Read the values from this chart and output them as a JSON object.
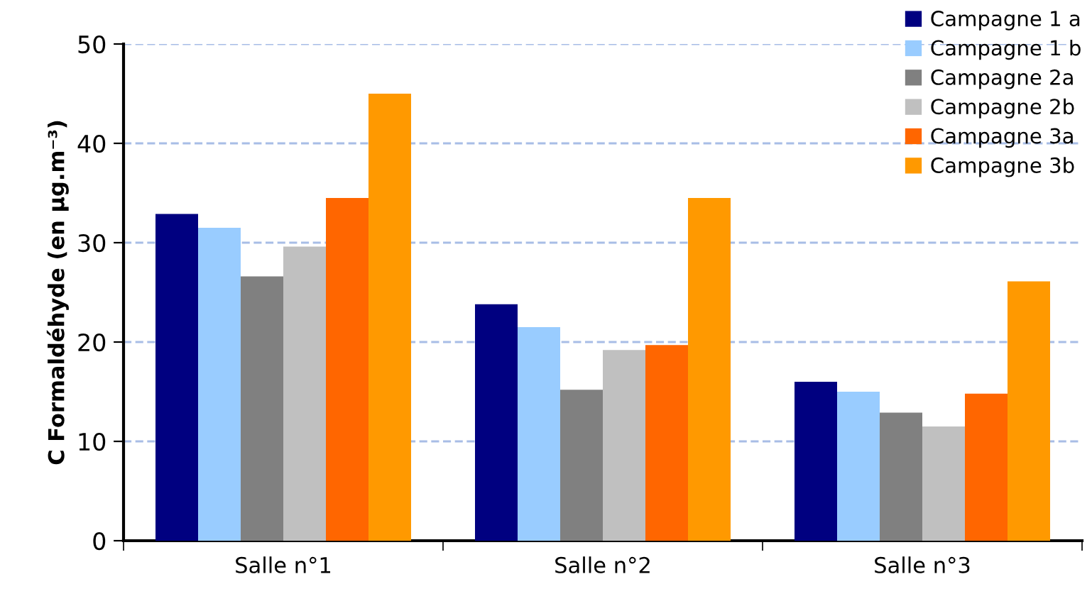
{
  "chart_data": {
    "type": "bar",
    "ylabel": "C Formaldéhyde (en µg.m⁻³)",
    "categories": [
      "Salle n°1",
      "Salle n°2",
      "Salle n°3"
    ],
    "series": [
      {
        "name": "Campagne 1 a",
        "color": "#000080",
        "values": [
          32.9,
          23.8,
          16.0
        ]
      },
      {
        "name": "Campagne 1 b",
        "color": "#99ccff",
        "values": [
          31.5,
          21.5,
          15.0
        ]
      },
      {
        "name": "Campagne 2a",
        "color": "#808080",
        "values": [
          26.6,
          15.2,
          12.9
        ]
      },
      {
        "name": "Campagne 2b",
        "color": "#c0c0c0",
        "values": [
          29.6,
          19.2,
          11.5
        ]
      },
      {
        "name": "Campagne 3a",
        "color": "#ff6600",
        "values": [
          34.5,
          19.7,
          14.8
        ]
      },
      {
        "name": "Campagne 3b",
        "color": "#ff9900",
        "values": [
          45.0,
          34.5,
          26.1
        ]
      }
    ],
    "ylim": [
      0,
      50
    ],
    "yticks": [
      0,
      10,
      20,
      30,
      40,
      50
    ],
    "grid": "y",
    "legend": "top right"
  }
}
